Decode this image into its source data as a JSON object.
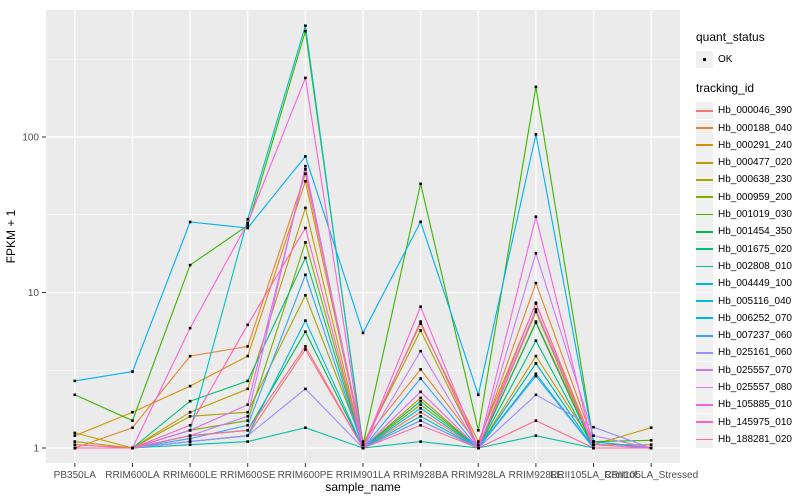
{
  "colors": {
    "background": "#FFFFFF",
    "panel": "#EBEBEB",
    "grid": "#FFFFFF",
    "axis_text": "#4D4D4D",
    "axis_tick": "#333333",
    "marker": "#000000",
    "legend_key_bg": "#F0F0F0"
  },
  "chart_data": {
    "type": "line",
    "title": "",
    "xlabel": "sample_name",
    "ylabel": "FPKM + 1",
    "y_scale": "log10",
    "y_ticks": [
      1,
      10,
      100
    ],
    "y_minor_ticks": [
      3.1623,
      31.623,
      316.23
    ],
    "ylim": [
      0.8,
      660
    ],
    "grid": true,
    "legend_position": "right",
    "point_legend": {
      "title": "quant_status",
      "items": [
        "OK"
      ]
    },
    "series_legend_title": "tracking_id",
    "categories": [
      "PB350LA",
      "RRIM600LA",
      "RRIM600LE",
      "RRIM600SE",
      "RRIM600PE",
      "RRIM901LA",
      "RRIM928BA",
      "RRIM928LA",
      "RRIM928LE",
      "RRII105LA_Control",
      "RRII105LA_Stressed"
    ],
    "series": [
      {
        "name": "Hb_000046_390",
        "color": "#F8766D",
        "values": [
          1.05,
          1,
          1.1,
          1.2,
          4.3,
          1,
          1.7,
          1,
          6.5,
          1.05,
          1
        ]
      },
      {
        "name": "Hb_000188_040",
        "color": "#EA8331",
        "values": [
          1,
          1.35,
          3.9,
          4.5,
          58,
          1.1,
          3.2,
          1.05,
          11.5,
          1.1,
          1
        ]
      },
      {
        "name": "Hb_000291_240",
        "color": "#D89000",
        "values": [
          1.2,
          1.7,
          2.5,
          3.9,
          52,
          1.05,
          6.3,
          1.1,
          8.5,
          1.05,
          1.05
        ]
      },
      {
        "name": "Hb_000477_020",
        "color": "#C09B00",
        "values": [
          1.25,
          1,
          1.7,
          2.4,
          35,
          1,
          2.1,
          1,
          3.9,
          1.05,
          1.35
        ]
      },
      {
        "name": "Hb_000638_230",
        "color": "#A3A500",
        "values": [
          1.1,
          1,
          1.6,
          1.7,
          9.6,
          1.05,
          5.7,
          1,
          7.5,
          1,
          1
        ]
      },
      {
        "name": "Hb_000959_200",
        "color": "#7CAE00",
        "values": [
          1,
          1,
          1.3,
          1.5,
          21,
          1,
          1.9,
          1,
          3.5,
          1,
          1
        ]
      },
      {
        "name": "Hb_001019_030",
        "color": "#39B600",
        "values": [
          2.2,
          1.5,
          15,
          27,
          480,
          1.05,
          50,
          1.3,
          210,
          1.1,
          1.12
        ]
      },
      {
        "name": "Hb_001454_350",
        "color": "#00BB4E",
        "values": [
          1,
          1,
          1.2,
          1.3,
          5.6,
          1,
          1.5,
          1,
          6.4,
          1,
          1
        ]
      },
      {
        "name": "Hb_001675_020",
        "color": "#00BF7D",
        "values": [
          1,
          1,
          2,
          2.7,
          16.7,
          1,
          2,
          1,
          4.9,
          1,
          1
        ]
      },
      {
        "name": "Hb_002808_010",
        "color": "#00C1A3",
        "values": [
          1,
          1,
          1.05,
          1.1,
          1.35,
          1,
          1.1,
          1,
          1.2,
          1,
          1
        ]
      },
      {
        "name": "Hb_004449_100",
        "color": "#00BFC4",
        "values": [
          1,
          1,
          1.3,
          29.6,
          520,
          1,
          1.6,
          1,
          3,
          1,
          1
        ]
      },
      {
        "name": "Hb_005116_040",
        "color": "#00BAE0",
        "values": [
          1,
          1,
          1.1,
          1.2,
          6.6,
          1,
          1.8,
          1,
          3.5,
          1,
          1
        ]
      },
      {
        "name": "Hb_006252_070",
        "color": "#00B0F6",
        "values": [
          2.7,
          3.1,
          28.4,
          26,
          75,
          5.5,
          28.5,
          2.2,
          104,
          1.1,
          1
        ]
      },
      {
        "name": "Hb_007237_060",
        "color": "#35A2FF",
        "values": [
          1,
          1,
          1.15,
          1.4,
          13,
          1,
          2.8,
          1,
          2.9,
          1,
          1
        ]
      },
      {
        "name": "Hb_025161_060",
        "color": "#9590FF",
        "values": [
          1,
          1,
          1.1,
          1.2,
          2.4,
          1,
          1.5,
          1,
          2.2,
          1.36,
          1
        ]
      },
      {
        "name": "Hb_025557_070",
        "color": "#C77CFF",
        "values": [
          1,
          1,
          1.2,
          1.6,
          65,
          1,
          4.2,
          1,
          17.9,
          1.2,
          1
        ]
      },
      {
        "name": "Hb_025557_080",
        "color": "#E76BF3",
        "values": [
          1,
          1,
          1.3,
          1.9,
          62,
          1,
          2.3,
          1,
          7.8,
          1.05,
          1
        ]
      },
      {
        "name": "Hb_105885_010",
        "color": "#FA62DB",
        "values": [
          1,
          1,
          5.9,
          28,
          240,
          1,
          8.1,
          1,
          30.7,
          1,
          1
        ]
      },
      {
        "name": "Hb_145975_010",
        "color": "#FF62BC",
        "values": [
          1,
          1,
          1.4,
          6.2,
          26,
          1,
          6.5,
          1,
          8.6,
          1,
          1
        ]
      },
      {
        "name": "Hb_188281_020",
        "color": "#FF6A98",
        "values": [
          1.05,
          1,
          1.2,
          1.3,
          4.5,
          1,
          1.4,
          1,
          1.5,
          1,
          1
        ]
      }
    ]
  }
}
